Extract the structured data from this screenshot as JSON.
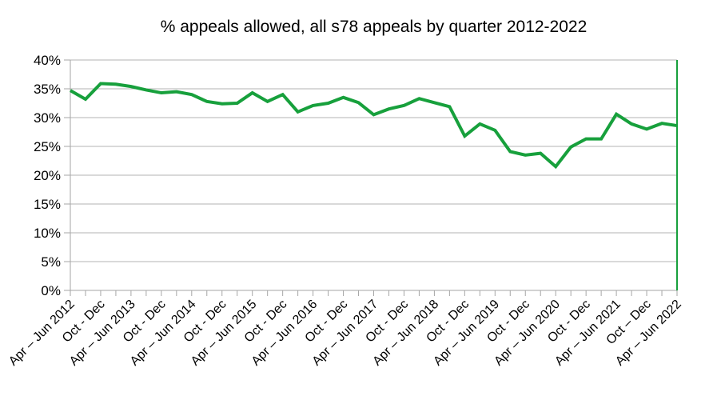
{
  "chart_data": {
    "type": "line",
    "title": "% appeals allowed, all s78 appeals by quarter 2012-2022",
    "xlabel": "",
    "ylabel": "",
    "ylim": [
      0,
      40
    ],
    "ytick_step": 5,
    "ytick_suffix": "%",
    "grid": true,
    "legend_position": "none",
    "x_tick_labels": [
      "Apr – Jun 2012",
      "Oct - Dec",
      "Apr – Jun 2013",
      "Oct - Dec",
      "Apr – Jun 2014",
      "Oct - Dec",
      "Apr – Jun 2015",
      "Oct - Dec",
      "Apr – Jun 2016",
      "Oct - Dec",
      "Apr – Jun 2017",
      "Oct - Dec",
      "Apr – Jun 2018",
      "Oct - Dec",
      "Apr – Jun 2019",
      "Oct - Dec",
      "Apr – Jun 2020",
      "Oct - Dec",
      "Apr – Jun 2021",
      "Oct – Dec",
      "Apr – Jun 2022"
    ],
    "x_label_every_n_points": 2,
    "n_points": 41,
    "values": [
      34.7,
      33.2,
      35.9,
      35.8,
      35.4,
      34.8,
      34.3,
      34.5,
      34.0,
      32.8,
      32.4,
      32.5,
      34.3,
      32.8,
      34.0,
      31.0,
      32.1,
      32.5,
      33.5,
      32.6,
      30.5,
      31.5,
      32.1,
      33.3,
      32.6,
      31.9,
      26.8,
      28.9,
      27.8,
      24.1,
      23.5,
      23.8,
      21.5,
      24.9,
      26.3,
      26.3,
      30.6,
      28.9,
      28.0,
      29.0,
      28.6
    ],
    "colors": {
      "line": "#17a03c",
      "right_border": "#17a03c",
      "grid": "#b3b3b3",
      "axis": "#a6a6a6",
      "text": "#000000",
      "background": "#ffffff"
    }
  }
}
